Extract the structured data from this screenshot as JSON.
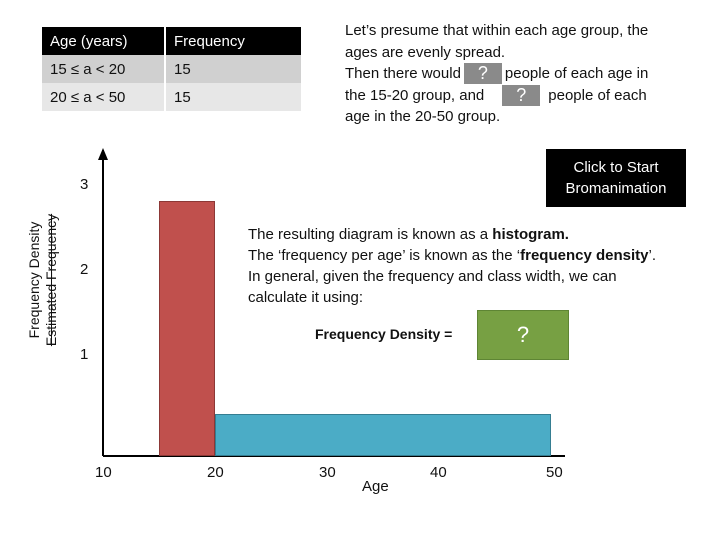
{
  "table": {
    "headers": [
      "Age (years)",
      "Frequency"
    ],
    "rows": [
      {
        "range": "15 ≤ a < 20",
        "freq": "15"
      },
      {
        "range": "20 ≤ a < 50",
        "freq": "15"
      }
    ]
  },
  "intro": {
    "line1": "Let’s presume that within each age group, the",
    "line2": "ages are evenly spread.",
    "line3a": "Then there would",
    "line3b": "people of each age in",
    "line4a": "the 15-20 group, and",
    "line4b": "people of each",
    "line5": "age in the 20-50 group.",
    "q1": "?",
    "q2": "?"
  },
  "start_button": {
    "line1": "Click to Start",
    "line2": "Bromanimation"
  },
  "y_axis": {
    "label_line1": "Frequency Density",
    "label_line2": "Estimated Frequency",
    "ticks": [
      "3",
      "2",
      "1"
    ]
  },
  "x_axis": {
    "label": "Age",
    "ticks": [
      "10",
      "20",
      "30",
      "40",
      "50"
    ]
  },
  "explain": {
    "p1a": "The resulting diagram is known as a ",
    "p1b": "histogram.",
    "p2a": "The ‘frequency per age’ is known as the ‘",
    "p2b": "frequency density",
    "p2c": "’.",
    "p3": "In general, given the frequency and class width, we can",
    "p4": "calculate it using:"
  },
  "formula": {
    "label": "Frequency Density =",
    "answer": "?"
  },
  "chart_data": {
    "type": "bar",
    "categories": [
      "15-20",
      "20-50"
    ],
    "values": [
      3,
      0.5
    ],
    "xlabel": "Age",
    "ylabel": "Frequency Density",
    "xlim": [
      10,
      50
    ],
    "ylim": [
      0,
      3
    ]
  },
  "colors": {
    "bar1": "#c0504d",
    "bar2": "#4bacc6",
    "formula_box": "#77a043",
    "question_box": "#8a8a8a"
  }
}
